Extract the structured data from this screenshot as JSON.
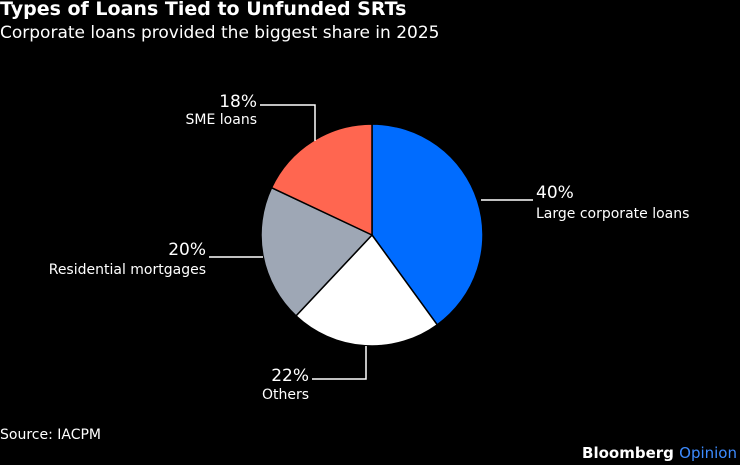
{
  "title": "Types of Loans Tied to Unfunded SRTs",
  "subtitle": "Corporate loans provided the biggest share in 2025",
  "source": "Source: IACPM",
  "brand": {
    "name": "Bloomberg",
    "suffix": "Opinion"
  },
  "colors": {
    "large_corporate": "#006cff",
    "others": "#ffffff",
    "residential": "#9ea7b5",
    "sme": "#ff6650",
    "background": "#000000",
    "brand_accent": "#3d8bff"
  },
  "chart_data": {
    "type": "pie",
    "title": "Types of Loans Tied to Unfunded SRTs",
    "start_angle": "12 o'clock",
    "direction": "clockwise",
    "slices": [
      {
        "label": "Large corporate loans",
        "value": 40,
        "value_label": "40%",
        "color": "#006cff"
      },
      {
        "label": "Others",
        "value": 22,
        "value_label": "22%",
        "color": "#ffffff"
      },
      {
        "label": "Residential mortgages",
        "value": 20,
        "value_label": "20%",
        "color": "#9ea7b5"
      },
      {
        "label": "SME loans",
        "value": 18,
        "value_label": "18%",
        "color": "#ff6650"
      }
    ]
  }
}
